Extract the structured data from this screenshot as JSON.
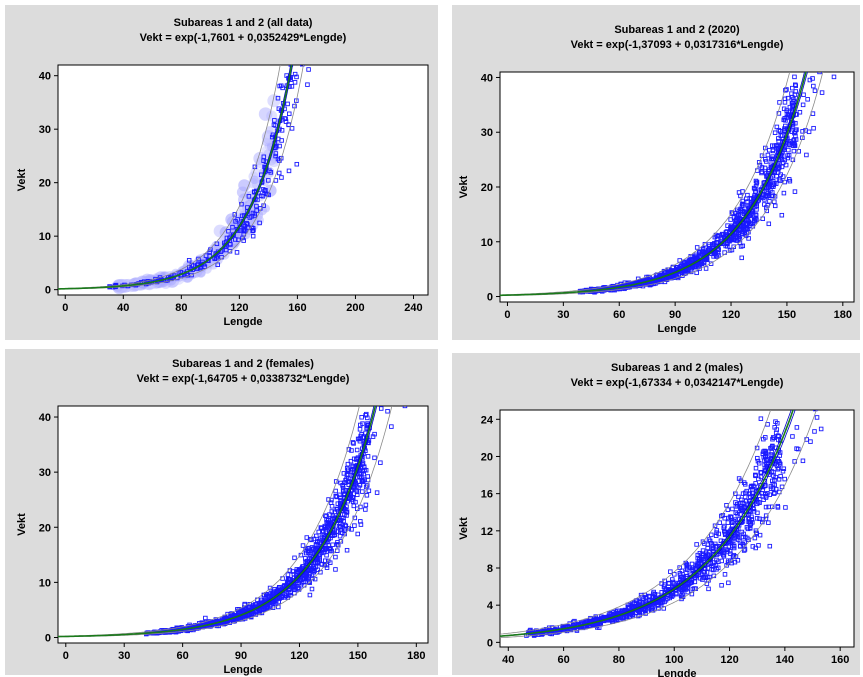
{
  "colors": {
    "panel_bg": "#dcdcdc",
    "plot_bg": "#ffffff",
    "points": "#1a1aff",
    "fit_line": "#1a7a1a",
    "fit_band": "#0000cc",
    "pred_limits": "#8a8a8a"
  },
  "chart_data": [
    {
      "id": "all",
      "type": "scatter",
      "title": "Subareas 1 and 2 (all data)",
      "subtitle": "Vekt = exp(-1,7601 + 0,0352429*Lengde)",
      "xlabel": "Lengde",
      "ylabel": "Vekt",
      "xlim": [
        -5,
        250
      ],
      "ylim": [
        -1,
        42
      ],
      "xticks": [
        0,
        40,
        80,
        120,
        160,
        200,
        240
      ],
      "yticks": [
        0,
        10,
        20,
        30,
        40
      ],
      "model": {
        "a": -1.7601,
        "b": 0.0352429
      },
      "density_shading": true,
      "grid": false,
      "x_range_data": [
        28,
        178
      ]
    },
    {
      "id": "y2020",
      "type": "scatter",
      "title": "Subareas 1 and 2 (2020)",
      "subtitle": "Vekt = exp(-1,37093 + 0,0317316*Lengde)",
      "xlabel": "Lengde",
      "ylabel": "Vekt",
      "xlim": [
        -4,
        186
      ],
      "ylim": [
        -1,
        41
      ],
      "xticks": [
        0,
        30,
        60,
        90,
        120,
        150,
        180
      ],
      "yticks": [
        0,
        10,
        20,
        30,
        40
      ],
      "model": {
        "a": -1.37093,
        "b": 0.0317316
      },
      "density_shading": false,
      "grid": false,
      "x_range_data": [
        38,
        176
      ]
    },
    {
      "id": "females",
      "type": "scatter",
      "title": "Subareas 1 and 2 (females)",
      "subtitle": "Vekt = exp(-1,64705 + 0,0338732*Lengde)",
      "xlabel": "Lengde",
      "ylabel": "Vekt",
      "xlim": [
        -4,
        186
      ],
      "ylim": [
        -1,
        42
      ],
      "xticks": [
        0,
        30,
        60,
        90,
        120,
        150,
        180
      ],
      "yticks": [
        0,
        10,
        20,
        30,
        40
      ],
      "model": {
        "a": -1.64705,
        "b": 0.0338732
      },
      "density_shading": false,
      "grid": false,
      "x_range_data": [
        40,
        176
      ]
    },
    {
      "id": "males",
      "type": "scatter",
      "title": "Subareas 1 and 2 (males)",
      "subtitle": "Vekt = exp(-1,67334 + 0,0342147*Lengde)",
      "xlabel": "Lengde",
      "ylabel": "Vekt",
      "xlim": [
        37,
        165
      ],
      "ylim": [
        -0.5,
        25
      ],
      "xticks": [
        40,
        60,
        80,
        100,
        120,
        140,
        160
      ],
      "yticks": [
        0,
        4,
        8,
        12,
        16,
        20,
        24
      ],
      "model": {
        "a": -1.67334,
        "b": 0.0342147
      },
      "density_shading": false,
      "grid": false,
      "x_range_data": [
        45,
        155
      ]
    }
  ]
}
